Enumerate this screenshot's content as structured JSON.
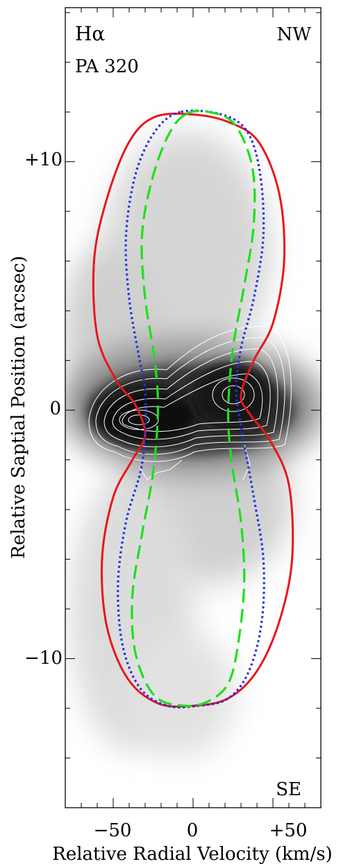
{
  "chart_data": {
    "type": "line",
    "title": "",
    "xlabel": "Relative Radial Velocity (km/s)",
    "ylabel": "Relative Saptial Position (arcsec)",
    "xlim": [
      -80,
      80
    ],
    "ylim": [
      -16,
      16.2
    ],
    "x_ticks": [
      {
        "value": -50,
        "label": "−50"
      },
      {
        "value": 0,
        "label": "0"
      },
      {
        "value": 50,
        "label": "+50"
      }
    ],
    "y_ticks": [
      {
        "value": 10,
        "label": "+10"
      },
      {
        "value": 0,
        "label": "0"
      },
      {
        "value": -10,
        "label": "−10"
      }
    ],
    "grid": false,
    "background": "greyscale H-alpha position-velocity image with white intensity contours",
    "annotations": {
      "line": "Hα",
      "position_angle": "PA 320",
      "top_direction": "NW",
      "bottom_direction": "SE"
    },
    "series": [
      {
        "style": "solid",
        "color": "#e8161b",
        "points": [
          [
            -24,
            11.8
          ],
          [
            -40,
            10.8
          ],
          [
            -54,
            8.5
          ],
          [
            -62,
            6.0
          ],
          [
            -60,
            3.0
          ],
          [
            -48,
            1.2
          ],
          [
            -36,
            0.2
          ],
          [
            -30,
            -1.0
          ],
          [
            -38,
            -2.0
          ],
          [
            -50,
            -3.5
          ],
          [
            -57,
            -6.0
          ],
          [
            -54,
            -8.7
          ],
          [
            -41,
            -10.8
          ],
          [
            -22,
            -11.8
          ],
          [
            0,
            -11.9
          ],
          [
            22,
            -11.6
          ],
          [
            40,
            -10.5
          ],
          [
            54,
            -8.5
          ],
          [
            62,
            -6.0
          ],
          [
            60,
            -3.0
          ],
          [
            48,
            -1.2
          ],
          [
            36,
            -0.2
          ],
          [
            30,
            0.6
          ],
          [
            38,
            2.0
          ],
          [
            50,
            3.5
          ],
          [
            57,
            6.0
          ],
          [
            54,
            8.7
          ],
          [
            41,
            10.8
          ],
          [
            22,
            11.6
          ],
          [
            0,
            11.9
          ],
          [
            -24,
            11.8
          ]
        ]
      },
      {
        "style": "dotted",
        "color": "#2230e0",
        "points": [
          [
            -8,
            12.0
          ],
          [
            -24,
            11.2
          ],
          [
            -36,
            9.5
          ],
          [
            -42,
            7.0
          ],
          [
            -40,
            4.5
          ],
          [
            -34,
            2.2
          ],
          [
            -30,
            0.8
          ],
          [
            -30,
            -1.0
          ],
          [
            -33,
            -2.5
          ],
          [
            -42,
            -4.5
          ],
          [
            -47,
            -7.0
          ],
          [
            -44,
            -9.5
          ],
          [
            -33,
            -11.2
          ],
          [
            -16,
            -11.9
          ],
          [
            3,
            -11.9
          ],
          [
            22,
            -11.6
          ],
          [
            35,
            -10.5
          ],
          [
            43,
            -8.5
          ],
          [
            44,
            -6.0
          ],
          [
            38,
            -3.5
          ],
          [
            31,
            -1.0
          ],
          [
            27,
            0.8
          ],
          [
            30,
            2.5
          ],
          [
            38,
            4.5
          ],
          [
            44,
            7.0
          ],
          [
            42,
            9.5
          ],
          [
            34,
            11.2
          ],
          [
            18,
            11.9
          ],
          [
            -8,
            12.0
          ]
        ]
      },
      {
        "style": "dashed",
        "color": "#1de01d",
        "points": [
          [
            -5,
            11.9
          ],
          [
            -16,
            11.0
          ],
          [
            -26,
            9.2
          ],
          [
            -32,
            7.0
          ],
          [
            -30,
            4.5
          ],
          [
            -24,
            2.0
          ],
          [
            -22,
            0.0
          ],
          [
            -25,
            -2.5
          ],
          [
            -32,
            -5.0
          ],
          [
            -38,
            -7.5
          ],
          [
            -36,
            -9.8
          ],
          [
            -24,
            -11.5
          ],
          [
            -5,
            -11.9
          ],
          [
            10,
            -11.7
          ],
          [
            22,
            -11.0
          ],
          [
            28,
            -9.5
          ],
          [
            32,
            -7.0
          ],
          [
            30,
            -4.5
          ],
          [
            24,
            -2.0
          ],
          [
            22,
            0.0
          ],
          [
            25,
            2.5
          ],
          [
            32,
            5.0
          ],
          [
            38,
            7.5
          ],
          [
            37,
            9.8
          ],
          [
            26,
            11.5
          ],
          [
            10,
            12.0
          ],
          [
            -5,
            11.9
          ]
        ]
      }
    ]
  }
}
